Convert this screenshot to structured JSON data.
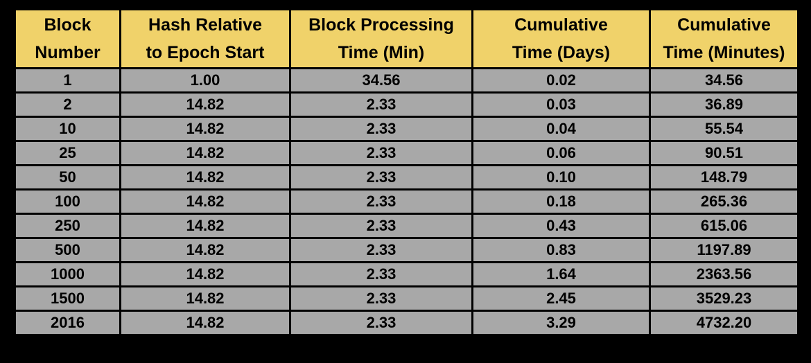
{
  "table": {
    "headers": [
      "Block\nNumber",
      "Hash Relative\nto Epoch Start",
      "Block Processing\nTime (Min)",
      "Cumulative\nTime (Days)",
      "Cumulative\nTime (Minutes)"
    ],
    "rows": [
      [
        "1",
        "1.00",
        "34.56",
        "0.02",
        "34.56"
      ],
      [
        "2",
        "14.82",
        "2.33",
        "0.03",
        "36.89"
      ],
      [
        "10",
        "14.82",
        "2.33",
        "0.04",
        "55.54"
      ],
      [
        "25",
        "14.82",
        "2.33",
        "0.06",
        "90.51"
      ],
      [
        "50",
        "14.82",
        "2.33",
        "0.10",
        "148.79"
      ],
      [
        "100",
        "14.82",
        "2.33",
        "0.18",
        "265.36"
      ],
      [
        "250",
        "14.82",
        "2.33",
        "0.43",
        "615.06"
      ],
      [
        "500",
        "14.82",
        "2.33",
        "0.83",
        "1197.89"
      ],
      [
        "1000",
        "14.82",
        "2.33",
        "1.64",
        "2363.56"
      ],
      [
        "1500",
        "14.82",
        "2.33",
        "2.45",
        "3529.23"
      ],
      [
        "2016",
        "14.82",
        "2.33",
        "3.29",
        "4732.20"
      ]
    ]
  },
  "colors": {
    "header_background": "#f0d26a",
    "cell_background": "#a8a8a8",
    "border": "#000000",
    "page_background": "#000000"
  }
}
